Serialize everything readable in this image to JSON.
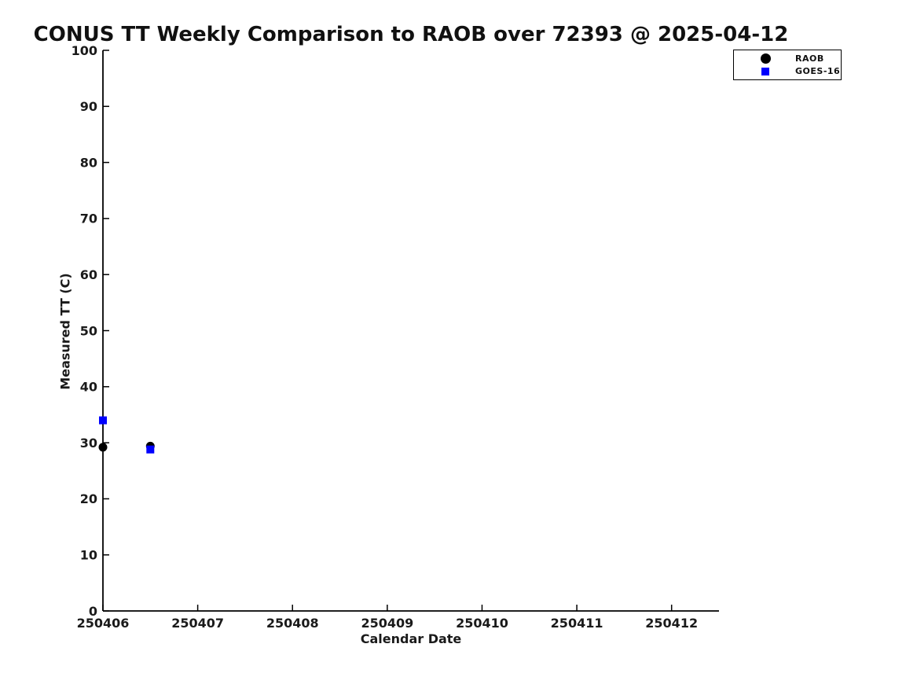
{
  "chart_data": {
    "type": "scatter",
    "title": "CONUS TT Weekly Comparison to RAOB over 72393 @ 2025-04-12",
    "xlabel": "Calendar Date",
    "ylabel": "Measured TT (C)",
    "xlim": [
      250406,
      250412.5
    ],
    "ylim": [
      0,
      100
    ],
    "x_ticks": [
      250406,
      250407,
      250408,
      250409,
      250410,
      250411,
      250412
    ],
    "y_ticks": [
      0,
      10,
      20,
      30,
      40,
      50,
      60,
      70,
      80,
      90,
      100
    ],
    "grid": false,
    "legend_position": "top-right outside plot",
    "axis_color": "#000000",
    "series": [
      {
        "name": "RAOB",
        "marker": "circle",
        "color": "#000000",
        "x": [
          250406.0,
          250406.5
        ],
        "y": [
          29.2,
          29.4
        ]
      },
      {
        "name": "GOES-16",
        "marker": "square",
        "color": "#0000FF",
        "x": [
          250406.0,
          250406.5
        ],
        "y": [
          34.0,
          28.8
        ]
      }
    ]
  }
}
